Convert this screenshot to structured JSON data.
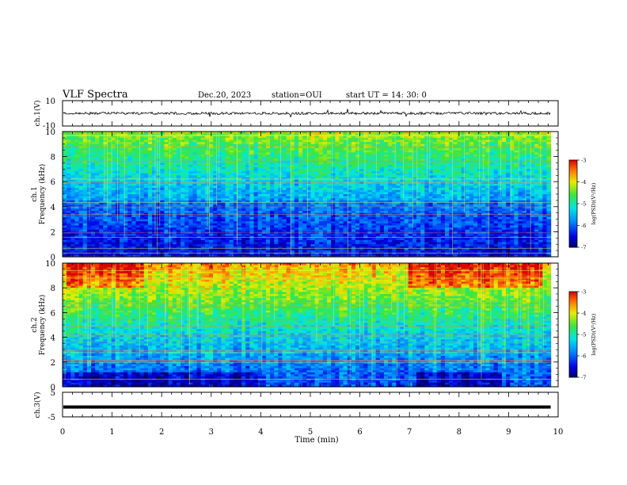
{
  "header": {
    "title": "VLF Spectra",
    "date": "Dec.20, 2023",
    "station": "station=OUI",
    "start_ut": "start  UT =   14: 30: 0"
  },
  "chart_data": [
    {
      "type": "line",
      "panel": "ch1-waveform",
      "ylabel": "ch.1(V)",
      "ylim": [
        -10,
        10
      ],
      "y_ticks": [
        "10",
        "-10"
      ],
      "baseline": 0,
      "amplitude_approx": 1
    },
    {
      "type": "heatmap",
      "panel": "ch1-spectrogram",
      "ylabel": "ch.1\nFrequency (kHz)",
      "ylim": [
        0,
        10
      ],
      "y_ticks": [
        "0",
        "2",
        "4",
        "6",
        "8",
        "10"
      ],
      "colorbar": {
        "label": "log(PSD)(V²/Hz)",
        "range": [
          -7,
          -3
        ],
        "ticks": [
          "-3",
          "-4",
          "-5",
          "-6",
          "-7"
        ]
      }
    },
    {
      "type": "heatmap",
      "panel": "ch2-spectrogram",
      "ylabel": "ch.2\nFrequency (kHz)",
      "ylim": [
        0,
        10
      ],
      "y_ticks": [
        "0",
        "2",
        "4",
        "6",
        "8",
        "10"
      ],
      "colorbar": {
        "label": "log(PSD)(V²/Hz)",
        "range": [
          -7,
          -3
        ],
        "ticks": [
          "-3",
          "-4",
          "-5",
          "-6",
          "-7"
        ]
      }
    },
    {
      "type": "line",
      "panel": "ch3-waveform",
      "ylabel": "ch.3(V)",
      "ylim": [
        -5,
        5
      ],
      "y_ticks": [
        "5",
        "-5"
      ],
      "constant_value": -1
    }
  ],
  "x_axis": {
    "label": "Time (min)",
    "range": [
      0,
      10
    ],
    "data_end": 9.85,
    "ticks": [
      "0",
      "1",
      "2",
      "3",
      "4",
      "5",
      "6",
      "7",
      "8",
      "9",
      "10"
    ]
  },
  "colors": {
    "frame": "#000000",
    "background": "#ffffff"
  }
}
